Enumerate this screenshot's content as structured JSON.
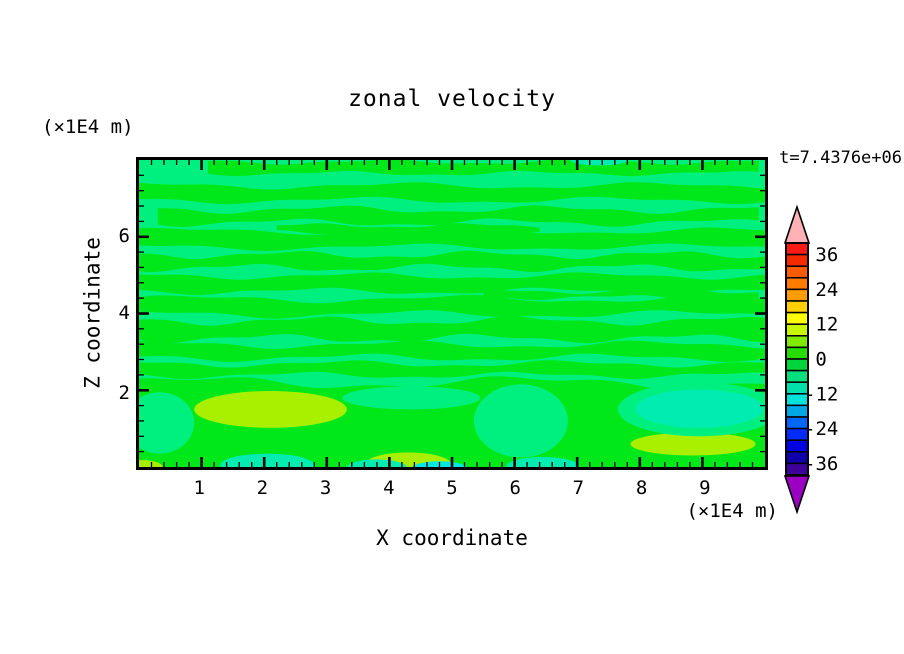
{
  "title": "zonal velocity",
  "timestamp_label": "t=7.4376e+06",
  "x_axis": {
    "label": "X coordinate",
    "unit_label": "(×1E4 m)",
    "tick_labels": [
      "1",
      "2",
      "3",
      "4",
      "5",
      "6",
      "7",
      "8",
      "9"
    ]
  },
  "z_axis": {
    "label": "Z coordinate",
    "unit_label": "(×1E4 m)",
    "tick_labels": [
      "6",
      "4",
      "2"
    ]
  },
  "colorbar": {
    "tick_labels": [
      "36",
      "24",
      "12",
      "0",
      "-12",
      "-24",
      "-36"
    ],
    "over_arrow_color": "#ffb1b5",
    "under_arrow_color": "#9b00c2",
    "band_colors_top_to_bottom": [
      "#fc1b16",
      "#f62a00",
      "#fd5b00",
      "#ff7c00",
      "#ff9d00",
      "#ffcf00",
      "#fdfd00",
      "#c8f600",
      "#7fe900",
      "#27dc00",
      "#00d63c",
      "#00df7e",
      "#00e1ac",
      "#00e3dd",
      "#00a8e5",
      "#0067f8",
      "#002cff",
      "#0000e2",
      "#1000ac",
      "#3e029b"
    ],
    "band_ranges_top_to_bottom": [
      [
        36,
        40
      ],
      [
        32,
        36
      ],
      [
        28,
        32
      ],
      [
        24,
        28
      ],
      [
        20,
        24
      ],
      [
        16,
        20
      ],
      [
        12,
        16
      ],
      [
        8,
        12
      ],
      [
        4,
        8
      ],
      [
        0,
        4
      ],
      [
        -4,
        0
      ],
      [
        -8,
        -4
      ],
      [
        -12,
        -8
      ],
      [
        -16,
        -12
      ],
      [
        -20,
        -16
      ],
      [
        -24,
        -20
      ],
      [
        -28,
        -24
      ],
      [
        -32,
        -28
      ],
      [
        -36,
        -32
      ],
      [
        -40,
        -36
      ]
    ]
  },
  "chart_data": {
    "type": "heatmap",
    "subtype": "filled_contour",
    "title": "zonal velocity",
    "xlabel": "X coordinate (×1E4 m)",
    "ylabel": "Z coordinate (×1E4 m)",
    "annotation": "t=7.4376e+06",
    "x_range": [
      0,
      10
    ],
    "z_range": [
      0,
      8
    ],
    "x_major_ticks": [
      1,
      2,
      3,
      4,
      5,
      6,
      7,
      8,
      9
    ],
    "x_minor_step": 0.2,
    "z_major_ticks": [
      2,
      4,
      6
    ],
    "z_minor_step": 0.4,
    "contour_interval": 4,
    "colorbar_labels": [
      36,
      24,
      12,
      0,
      -12,
      -24,
      -36
    ],
    "colorbar_range": [
      -40,
      40
    ],
    "legend_position": "right",
    "palette": {
      "green": "#00e81a",
      "springgreen": "#00f080",
      "turquoise": "#00ecb0",
      "cyan": "#00e6e2",
      "greenyellow": "#a8f000"
    },
    "palette_value_ranges": {
      "green": "0 to 4",
      "springgreen": "-4 to 0",
      "turquoise": "-8 to -4",
      "cyan": "-12 to -8",
      "greenyellow": "8 to 12"
    },
    "field": {
      "description": "Zonal velocity field: wavy horizontal bands alternating between values -4..0 (spring green background) and 0..4 (green stripes) over most of the domain; below z≈2 a mostly 0..4 green layer containing 8..12 (green-yellow) maxima near (2.1,1.5), (8.9,0.6), (4.3,0.1) and -8..-4 (turquoise) minima near (8.95,1.5), (2.05,0.1), (6.45,0.1) with a -12..-8 (cyan) core near (4.8,0.0); small turquoise sliver at the top edge near x=7.35.",
      "stripes": [
        [
          7.8,
          0.15,
          1.1,
          10,
          0.05,
          3.1,
          0.0
        ],
        [
          7.14,
          0.19,
          0,
          10,
          0.07,
          4.0,
          1.3
        ],
        [
          6.54,
          0.17,
          0.3,
          10,
          0.08,
          3.4,
          2.1
        ],
        [
          5.94,
          0.21,
          0,
          10,
          0.07,
          4.4,
          0.7
        ],
        [
          5.36,
          0.17,
          0,
          10,
          0.08,
          3.0,
          2.8
        ],
        [
          4.78,
          0.2,
          0,
          10,
          0.07,
          3.7,
          1.9
        ],
        [
          4.18,
          0.2,
          0,
          10,
          0.08,
          4.2,
          0.3
        ],
        [
          3.58,
          0.23,
          0,
          10,
          0.09,
          3.3,
          2.5
        ],
        [
          3.02,
          0.17,
          0,
          10,
          0.08,
          3.9,
          1.1
        ],
        [
          2.54,
          0.15,
          0,
          10,
          0.07,
          3.5,
          2.0
        ],
        [
          6.2,
          0.09,
          2.2,
          6.5,
          0.05,
          2.5,
          0.9
        ],
        [
          4.5,
          0.08,
          5.5,
          10,
          0.05,
          2.8,
          1.6
        ]
      ],
      "lower_band": {
        "top": 2.2
      },
      "patches": [
        {
          "c": [
            0.33,
            1.15,
            0.55,
            0.8
          ],
          "color": "springgreen"
        },
        {
          "c": [
            6.1,
            1.2,
            0.75,
            0.95
          ],
          "color": "springgreen"
        },
        {
          "c": [
            4.35,
            1.8,
            1.1,
            0.3
          ],
          "color": "springgreen"
        },
        {
          "c": [
            2.1,
            1.5,
            1.22,
            0.48
          ],
          "color": "greenyellow"
        },
        {
          "c": [
            8.85,
            0.6,
            1.0,
            0.3
          ],
          "color": "greenyellow"
        },
        {
          "c": [
            4.3,
            0.05,
            0.7,
            0.33
          ],
          "color": "greenyellow"
        },
        {
          "c": [
            0.05,
            0.0,
            0.33,
            0.18
          ],
          "color": "greenyellow"
        },
        {
          "c": [
            8.95,
            1.5,
            1.3,
            0.7
          ],
          "color": "springgreen"
        },
        {
          "c": [
            8.95,
            1.52,
            1.02,
            0.5
          ],
          "color": "turquoise"
        },
        {
          "c": [
            2.05,
            0.05,
            0.75,
            0.3
          ],
          "color": "turquoise"
        },
        {
          "c": [
            3.8,
            -0.02,
            0.48,
            0.22
          ],
          "color": "turquoise"
        },
        {
          "c": [
            6.45,
            0.02,
            0.58,
            0.24
          ],
          "color": "turquoise"
        },
        {
          "c": [
            4.8,
            -0.05,
            0.45,
            0.2
          ],
          "color": "cyan"
        },
        {
          "c": [
            7.35,
            8.0,
            0.46,
            0.14
          ],
          "color": "turquoise"
        }
      ]
    }
  }
}
